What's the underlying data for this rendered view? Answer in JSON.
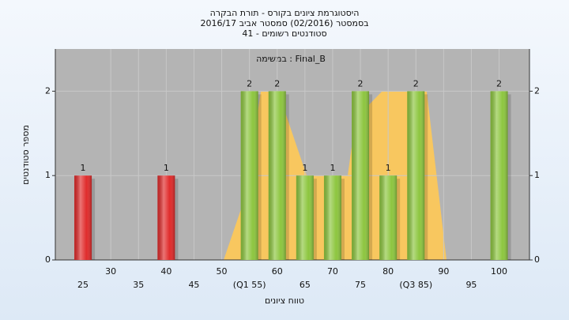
{
  "chart_data": {
    "type": "bar",
    "title": "היסטוגרמת ציונים בקורס - תורת הבקרה",
    "subtitle": "בסמסטר  (02/2016)  סמסטר אביב 2016/17",
    "subtitle2": "סטודנטים רשומים - 41",
    "annotation": "במשימה : Final_B",
    "x_label": "טווח ציונים",
    "y_label": "מספר סטודנטים",
    "categories": [
      "25",
      "30",
      "35",
      "40",
      "45",
      "50",
      "(Q1 55)",
      "60",
      "65",
      "70",
      "75",
      "80",
      "(Q3 85)",
      "90",
      "95",
      "100"
    ],
    "values": [
      1,
      0,
      0,
      1,
      0,
      0,
      2,
      2,
      1,
      1,
      2,
      1,
      2,
      0,
      0,
      2
    ],
    "colors": [
      "#e02b2b",
      "#8dc63f",
      "#8dc63f",
      "#e02b2b",
      "#8dc63f",
      "#8dc63f",
      "#8dc63f",
      "#8dc63f",
      "#8dc63f",
      "#8dc63f",
      "#8dc63f",
      "#8dc63f",
      "#8dc63f",
      "#8dc63f",
      "#8dc63f",
      "#8dc63f"
    ],
    "ylim": [
      0,
      2.5
    ],
    "yticks": [
      0,
      1,
      2
    ],
    "grid": true
  }
}
